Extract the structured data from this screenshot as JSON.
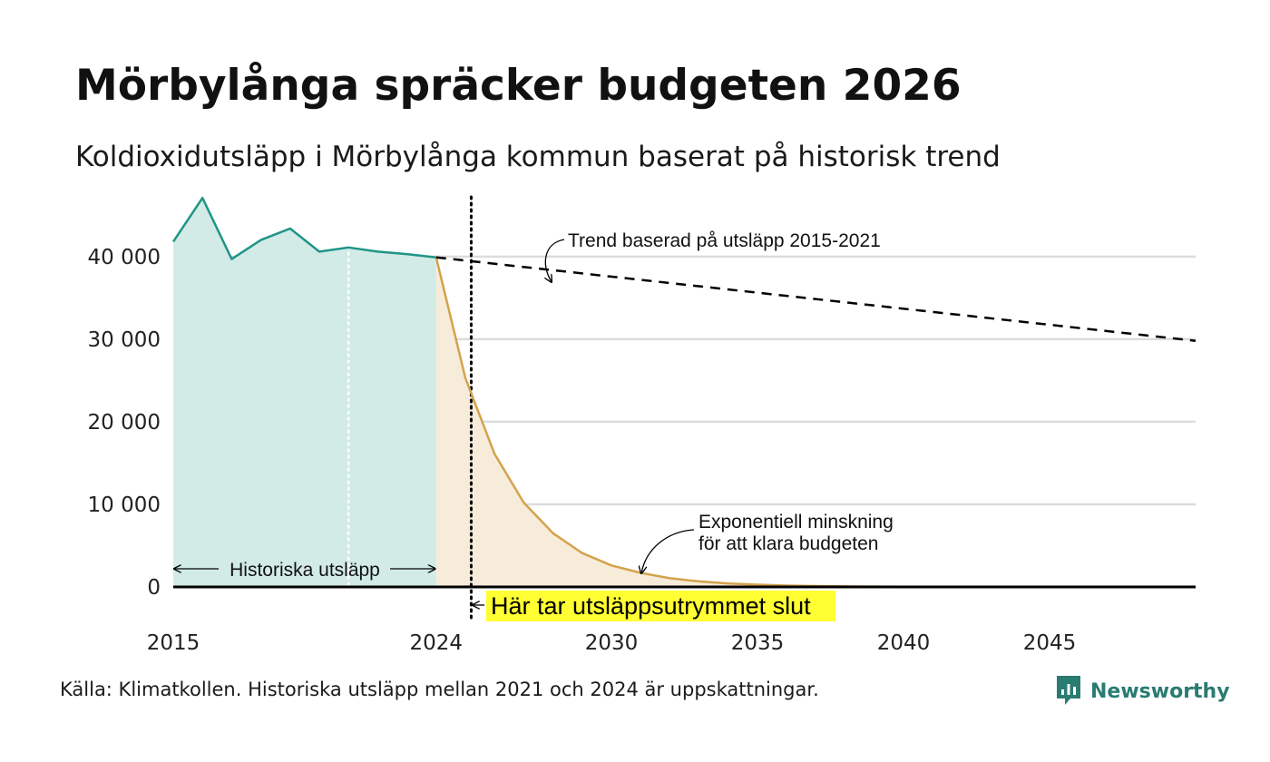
{
  "header": {
    "title": "Mörbylånga spräcker budgeten 2026",
    "subtitle": "Koldioxidutsläpp i Mörbylånga kommun baserat på historisk trend"
  },
  "footer": {
    "source": "Källa: Klimatkollen. Historiska utsläpp mellan 2021 och 2024 är uppskattningar.",
    "brand": "Newsworthy",
    "brand_icon": "bar-chart-icon"
  },
  "colors": {
    "historical_line": "#1f9587",
    "historical_fill": "#d2ebe7",
    "projection_line": "#d4a24c",
    "projection_fill": "#f6ecd9",
    "trend_line": "#000000",
    "highlight": "#ffff33",
    "gridline": "#dcdcdc",
    "brand": "#2a7b72"
  },
  "chart_data": {
    "type": "area",
    "title": "Mörbylånga spräcker budgeten 2026",
    "subtitle": "Koldioxidutsläpp i Mörbylånga kommun baserat på historisk trend",
    "xlabel": "",
    "ylabel": "",
    "xlim": [
      2015,
      2050
    ],
    "ylim": [
      0,
      48000
    ],
    "grid": true,
    "x_ticks": [
      2015,
      2024,
      2030,
      2035,
      2040,
      2045
    ],
    "x_tick_labels": [
      "2015",
      "2024",
      "2030",
      "2035",
      "2040",
      "2045"
    ],
    "y_ticks": [
      0,
      10000,
      20000,
      30000,
      40000
    ],
    "y_tick_labels": [
      "0",
      "10 000",
      "20 000",
      "30 000",
      "40 000"
    ],
    "series": [
      {
        "name": "Historiska utsläpp",
        "style": "area",
        "color": "#1f9587",
        "fill": "#d2ebe7",
        "x": [
          2015,
          2016,
          2017,
          2018,
          2019,
          2020,
          2021,
          2022,
          2023,
          2024
        ],
        "y": [
          41800,
          47100,
          39700,
          42000,
          43400,
          40600,
          41100,
          40600,
          40300,
          39900
        ]
      },
      {
        "name": "Exponentiell minskning för att klara budgeten",
        "style": "area",
        "color": "#d4a24c",
        "fill": "#f6ecd9",
        "x": [
          2024,
          2025,
          2026,
          2027,
          2028,
          2029,
          2030,
          2031,
          2032,
          2033,
          2034,
          2035,
          2036,
          2037,
          2038,
          2039,
          2040,
          2041,
          2042,
          2043,
          2044,
          2045,
          2046,
          2047,
          2048,
          2049,
          2050
        ],
        "y": [
          39900,
          25300,
          16100,
          10200,
          6500,
          4100,
          2600,
          1700,
          1050,
          670,
          420,
          270,
          170,
          110,
          70,
          45,
          28,
          18,
          11,
          7,
          5,
          3,
          2,
          1,
          1,
          0,
          0
        ]
      },
      {
        "name": "Trend baserad på utsläpp 2015-2021",
        "style": "dashed-line",
        "color": "#000000",
        "x": [
          2024,
          2050
        ],
        "y": [
          39900,
          29800
        ]
      }
    ],
    "markers": [
      {
        "type": "vertical-dotted",
        "x": 2021,
        "color": "#ffffff"
      },
      {
        "type": "vertical-dotted",
        "x": 2025.2,
        "color": "#000000"
      }
    ],
    "annotations": {
      "historical_span": "Historiska utsläpp",
      "trend": "Trend baserad på utsläpp 2015-2021",
      "decay_line1": "Exponentiell minskning",
      "decay_line2": "för att klara budgeten",
      "budget_end": "Här tar utsläppsutrymmet slut"
    }
  }
}
